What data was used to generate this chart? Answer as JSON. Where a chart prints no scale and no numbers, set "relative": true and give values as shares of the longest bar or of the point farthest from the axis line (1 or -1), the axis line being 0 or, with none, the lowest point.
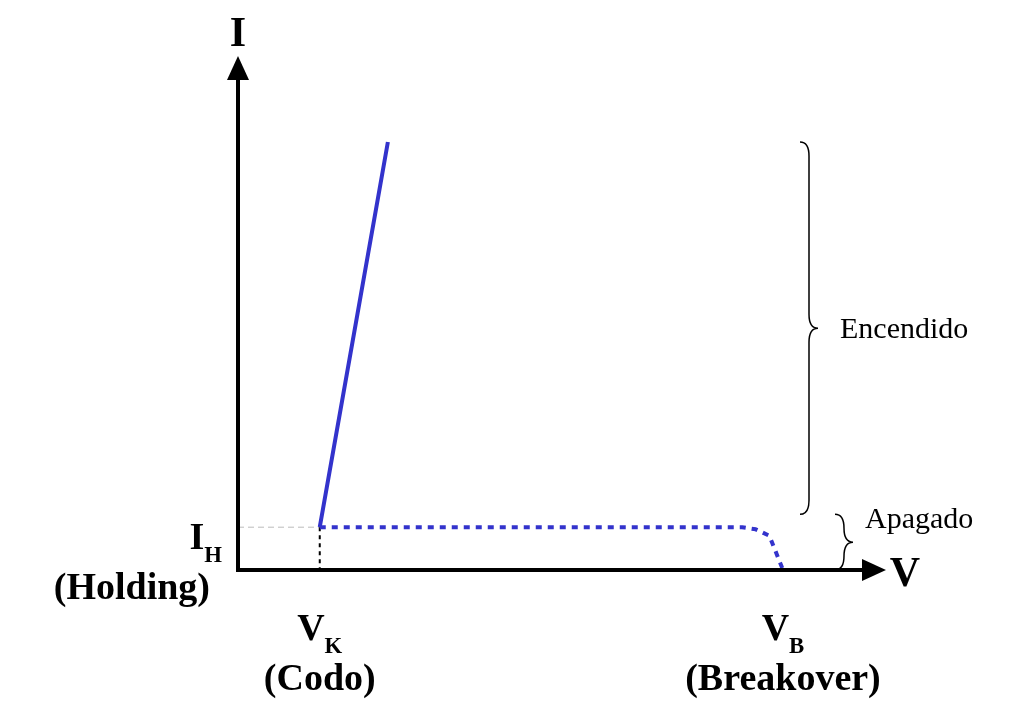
{
  "chart_data": {
    "type": "line",
    "xlabel": "V",
    "ylabel": "I",
    "relative": true,
    "categories": [
      null,
      null,
      null,
      null,
      null,
      null,
      "V$_{K}$\n(Codo)",
      null,
      null,
      null,
      null,
      null,
      null,
      null,
      null,
      null,
      null,
      null,
      null,
      null,
      null,
      null,
      null,
      null,
      null,
      null,
      null,
      null,
      null,
      null,
      null,
      null,
      null,
      null,
      null,
      null,
      null,
      null,
      null,
      null,
      "V$_{B}$\n(Breakover)"
    ],
    "series": [
      {
        "color": "#3333cc",
        "line_style": "solid",
        "values": [
          null,
          null,
          null,
          null,
          null,
          null,
          0.1,
          0.28,
          0.46,
          0.64,
          0.82,
          1,
          null,
          null,
          null,
          null,
          null,
          null,
          null,
          null,
          null,
          null,
          null,
          null,
          null,
          null,
          null,
          null,
          null,
          null,
          null,
          null,
          null,
          null,
          null,
          null,
          null,
          null,
          null,
          null,
          null
        ]
      },
      {
        "color": "#3333cc",
        "line_style": "dotted",
        "values": [
          null,
          null,
          null,
          null,
          null,
          null,
          0.1,
          0.1,
          0.1,
          0.1,
          0.1,
          0.1,
          0.1,
          0.1,
          0.1,
          0.1,
          0.1,
          0.1,
          0.1,
          0.1,
          0.1,
          0.1,
          0.1,
          0.1,
          0.1,
          0.1,
          0.1,
          0.1,
          0.1,
          0.1,
          0.1,
          0.1,
          0.1,
          0.1,
          0.1,
          0.1,
          0.1,
          0.1,
          0.095,
          0.08,
          0
        ]
      }
    ],
    "ref_lines": [
      {
        "axis": "y",
        "value": 0.1,
        "label": "I$_{H}$\n(Holding)",
        "color": "#bbbbbb",
        "line_style": "dashed"
      }
    ],
    "annotations": [
      "Encendido",
      "Apagado"
    ]
  }
}
